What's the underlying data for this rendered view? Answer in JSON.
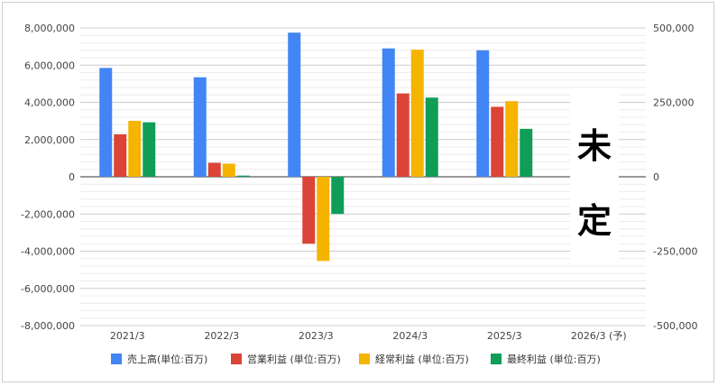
{
  "chart_data": {
    "type": "bar",
    "categories": [
      "2021/3",
      "2022/3",
      "2023/3",
      "2024/3",
      "2025/3",
      "2026/3 (予)"
    ],
    "left_axis": {
      "ticks": [
        "8,000,000",
        "6,000,000",
        "4,000,000",
        "2,000,000",
        "0",
        "-2,000,000",
        "-4,000,000",
        "-6,000,000",
        "-8,000,000"
      ],
      "ylim": [
        -8000000,
        8000000
      ]
    },
    "right_axis": {
      "ticks": [
        "500,000",
        "250,000",
        "0",
        "-250,000",
        "-500,000"
      ],
      "ylim": [
        -500000,
        500000
      ]
    },
    "grid": true,
    "legend_position": "bottom",
    "series": [
      {
        "name": "売上高(単位:百万)",
        "color": "#4285f4",
        "axis": "left",
        "values": [
          5850000,
          5350000,
          7750000,
          6900000,
          6800000,
          null
        ]
      },
      {
        "name": "営業利益 (単位:百万)",
        "color": "#db4437",
        "axis": "right",
        "values": [
          143000,
          47000,
          -225000,
          280000,
          235000,
          null
        ]
      },
      {
        "name": "経常利益 (単位:百万)",
        "color": "#f4b400",
        "axis": "right",
        "values": [
          188000,
          44000,
          -283000,
          427000,
          254000,
          null
        ]
      },
      {
        "name": "最終利益 (単位:百万)",
        "color": "#0f9d58",
        "axis": "right",
        "values": [
          183000,
          4000,
          -125000,
          266000,
          161000,
          null
        ]
      }
    ],
    "annotation": {
      "lines": [
        "未",
        "定"
      ]
    }
  }
}
